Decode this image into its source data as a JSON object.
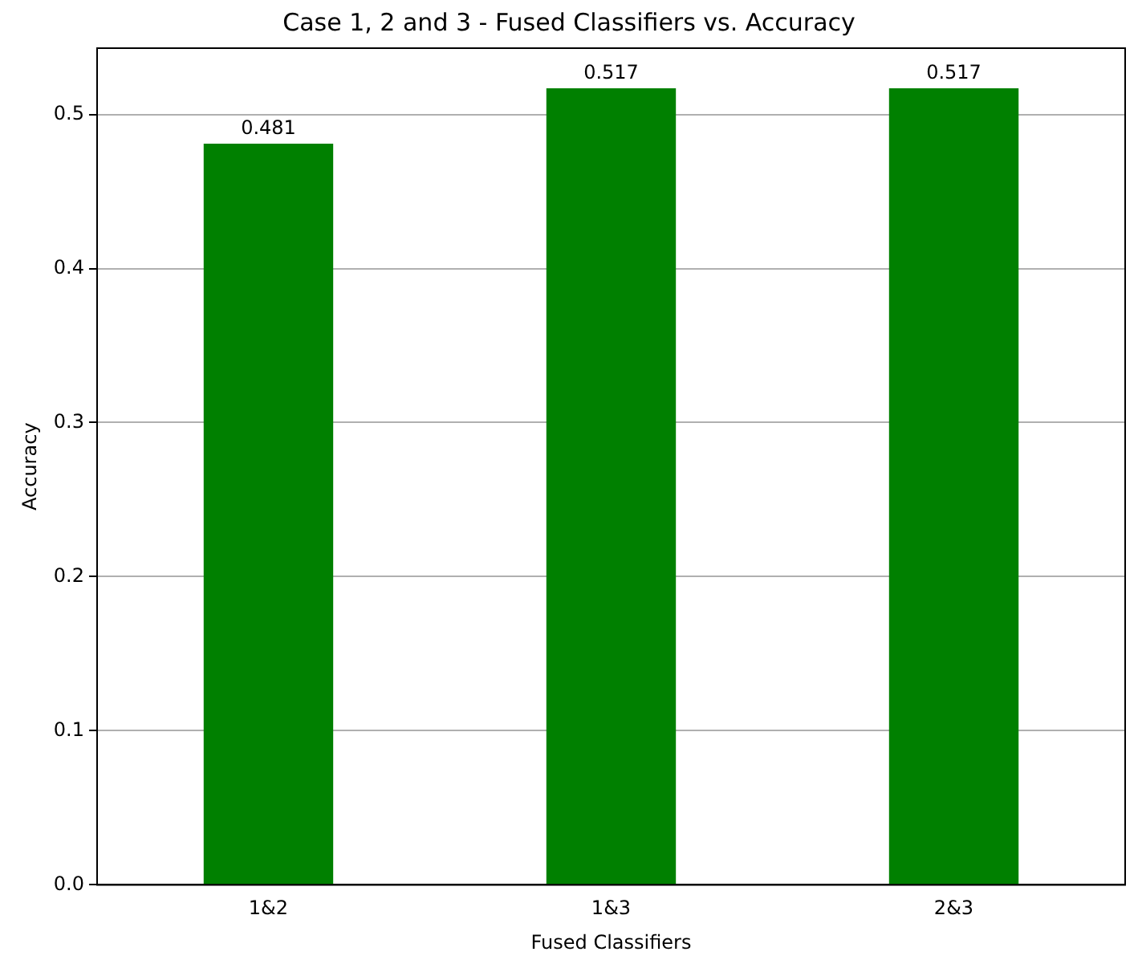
{
  "chart_data": {
    "type": "bar",
    "title": "Case 1, 2 and 3 - Fused Classifiers vs. Accuracy",
    "xlabel": "Fused Classifiers",
    "ylabel": "Accuracy",
    "categories": [
      "1&2",
      "1&3",
      "2&3"
    ],
    "values": [
      0.481,
      0.517,
      0.517
    ],
    "color": "#008000",
    "ylim": [
      0,
      0.543
    ],
    "yticks": [
      {
        "value": 0,
        "label": "0.0"
      },
      {
        "value": 0.1,
        "label": "0.1"
      },
      {
        "value": 0.2,
        "label": "0.2"
      },
      {
        "value": 0.3,
        "label": "0.3"
      },
      {
        "value": 0.4,
        "label": "0.4"
      },
      {
        "value": 0.5,
        "label": "0.5"
      }
    ],
    "grid": "y",
    "legend": false,
    "data_labels": true
  }
}
